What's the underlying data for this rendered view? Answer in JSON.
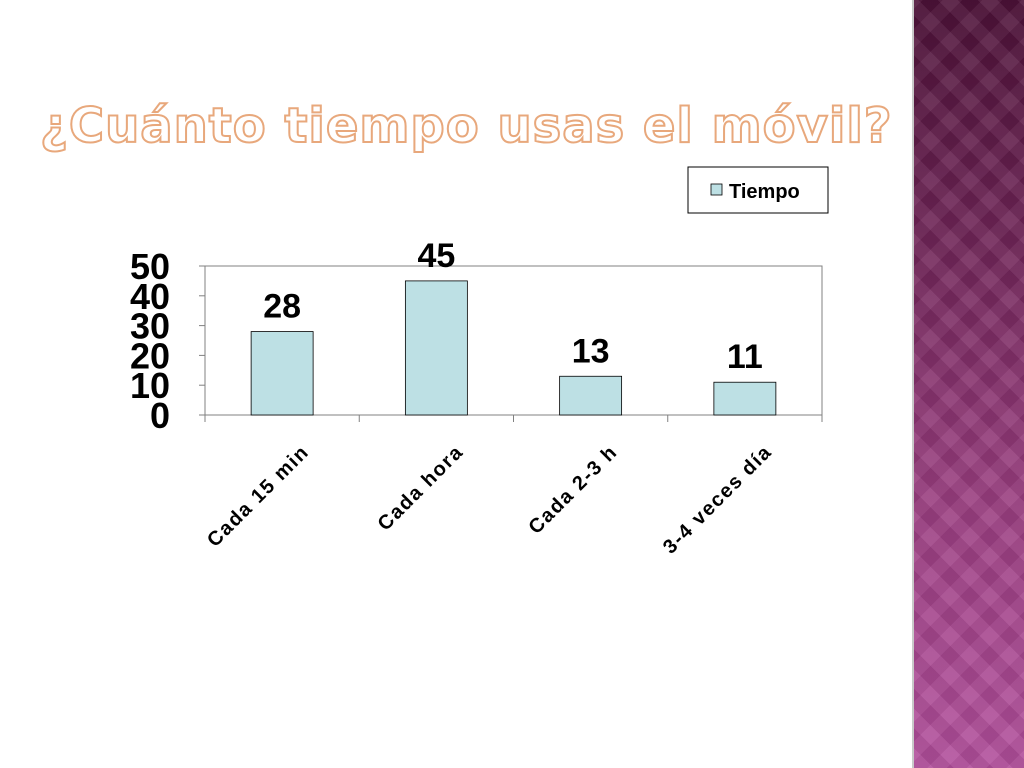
{
  "slide": {
    "title": "¿Cuánto tiempo usas el móvil?"
  },
  "colors": {
    "bar_fill": "#bde0e4",
    "bar_stroke": "#000000",
    "title_outline": "#e8a87c",
    "side_band_top": "#4d1238",
    "side_band_bottom": "#b24f9c"
  },
  "chart_data": {
    "type": "bar",
    "categories": [
      "Cada 15 min",
      "Cada hora",
      "Cada 2-3 h",
      "3-4 veces día"
    ],
    "series": [
      {
        "name": "Tiempo",
        "values": [
          28,
          45,
          13,
          11
        ]
      }
    ],
    "ylim": [
      0,
      50
    ],
    "yticks": [
      0,
      10,
      20,
      30,
      40,
      50
    ],
    "data_labels": true,
    "legend": "top-right",
    "grid": false,
    "xlabel": "",
    "ylabel": ""
  }
}
